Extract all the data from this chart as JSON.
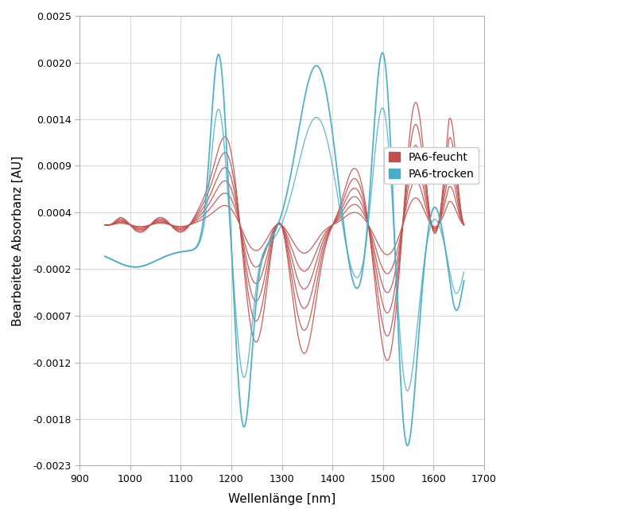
{
  "title": "",
  "xlabel": "Wellenlänge [nm]",
  "ylabel": "Bearbeitete Absorbanz [AU]",
  "xlim": [
    900,
    1700
  ],
  "ylim": [
    -0.0023,
    0.0025
  ],
  "x_ticks": [
    900,
    1000,
    1100,
    1200,
    1300,
    1400,
    1500,
    1600,
    1700
  ],
  "y_ticks": [
    -0.0023,
    -0.0018,
    -0.0012,
    -0.0007,
    -0.0002,
    0.0004,
    0.0009,
    0.0014,
    0.002,
    0.0025
  ],
  "feucht_color": "#c0504d",
  "trocken_color": "#4bacc6",
  "legend_labels": [
    "PA6-feucht",
    "PA6-trocken"
  ],
  "background_color": "#ffffff",
  "grid_color": "#d9d9d9",
  "feucht_n_lines": 6,
  "trocken_n_lines": 2
}
